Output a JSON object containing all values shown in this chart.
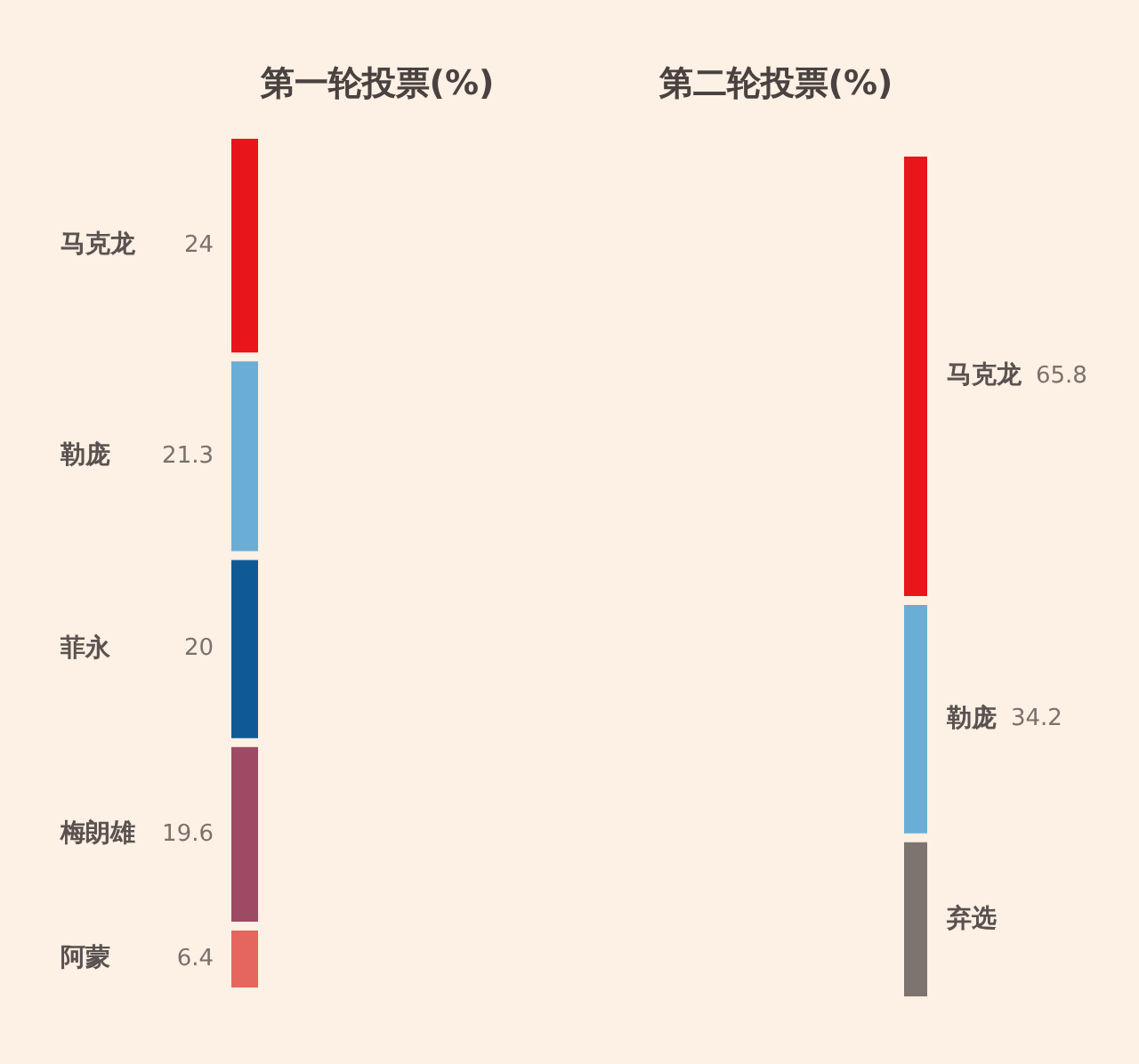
{
  "chart_data": {
    "type": "other",
    "data_labels": true,
    "categories": [
      "马克龙",
      "勒庞",
      "菲永",
      "梅朗雄",
      "阿蒙",
      "马克龙",
      "勒庞",
      "弃选"
    ],
    "series": [
      {
        "name": "第一轮投票(%)",
        "colors": [
          "#e8161b",
          "#6aaed6",
          "#0f5a96",
          "#9e4a64",
          "#e5665e",
          null,
          null,
          null
        ],
        "values": [
          24,
          21.3,
          20,
          19.6,
          6.4,
          null,
          null,
          null
        ]
      },
      {
        "name": "第二轮投票(%)",
        "colors": [
          null,
          null,
          null,
          null,
          null,
          "#e8161b",
          "#6aaed6",
          "#7d7470"
        ],
        "values": [
          null,
          null,
          null,
          null,
          null,
          65.8,
          34.2,
          null
        ]
      }
    ]
  }
}
